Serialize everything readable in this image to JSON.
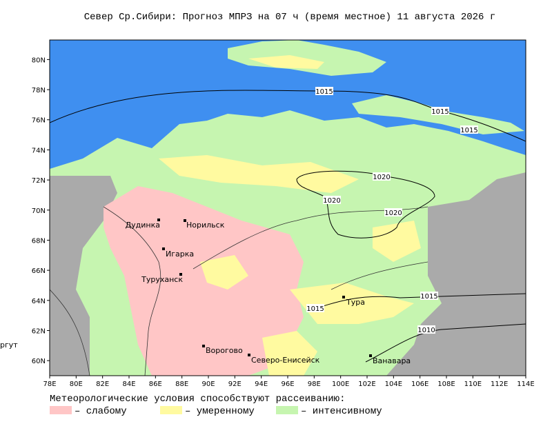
{
  "title": "Север Ср.Сибири:  Прогноз МПРЗ на 07 ч (время местное) 11 августа 2026 г",
  "map": {
    "lonlim": [
      78,
      114
    ],
    "latlim": [
      59,
      81.3
    ],
    "lon_ticks": [
      {
        "value": 78,
        "label": "78E"
      },
      {
        "value": 80,
        "label": "80E"
      },
      {
        "value": 82,
        "label": "82E"
      },
      {
        "value": 84,
        "label": "84E"
      },
      {
        "value": 86,
        "label": "86E"
      },
      {
        "value": 88,
        "label": "88E"
      },
      {
        "value": 90,
        "label": "90E"
      },
      {
        "value": 92,
        "label": "92E"
      },
      {
        "value": 94,
        "label": "94E"
      },
      {
        "value": 96,
        "label": "96E"
      },
      {
        "value": 98,
        "label": "98E"
      },
      {
        "value": 100,
        "label": "100E"
      },
      {
        "value": 102,
        "label": "102E"
      },
      {
        "value": 104,
        "label": "104E"
      },
      {
        "value": 106,
        "label": "106E"
      },
      {
        "value": 108,
        "label": "108E"
      },
      {
        "value": 110,
        "label": "110E"
      },
      {
        "value": 112,
        "label": "112E"
      },
      {
        "value": 114,
        "label": "114E"
      }
    ],
    "lat_ticks": [
      {
        "value": 60,
        "label": "60N"
      },
      {
        "value": 62,
        "label": "62N"
      },
      {
        "value": 64,
        "label": "64N"
      },
      {
        "value": 66,
        "label": "66N"
      },
      {
        "value": 68,
        "label": "68N"
      },
      {
        "value": 70,
        "label": "70N"
      },
      {
        "value": 72,
        "label": "72N"
      },
      {
        "value": 74,
        "label": "74N"
      },
      {
        "value": 76,
        "label": "76N"
      },
      {
        "value": 78,
        "label": "78N"
      },
      {
        "value": 80,
        "label": "80N"
      }
    ]
  },
  "cities": [
    "Дудинка",
    "Норильск",
    "Игарка",
    "Туруханск",
    "Ворогово",
    "Северо-Енисейск",
    "Тура",
    "Ванавара"
  ],
  "offmap_city": "ргут",
  "isobar_labels": [
    "1015",
    "1015",
    "1015",
    "1020",
    "1020",
    "1020",
    "1015",
    "1015",
    "1010"
  ],
  "legend": {
    "title": "Метеорологические условия способствуют рассеиванию:",
    "items": [
      {
        "label": "– слабому",
        "color": "#ffc6c6"
      },
      {
        "label": "– умеренному",
        "color": "#fffaa0"
      },
      {
        "label": "– интенсивному",
        "color": "#c6f5b0"
      }
    ]
  }
}
